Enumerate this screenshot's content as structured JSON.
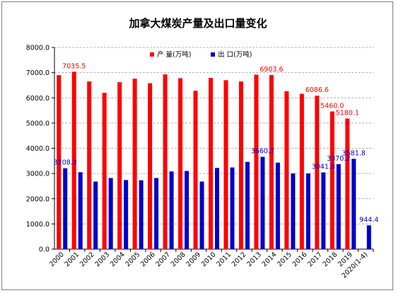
{
  "chart_data": {
    "type": "bar",
    "title": "加拿大煤炭产量及出口量变化",
    "xlabel": "",
    "ylabel": "",
    "ylim": [
      0,
      8000
    ],
    "yticks": [
      "0.0",
      "1000.0",
      "2000.0",
      "3000.0",
      "4000.0",
      "5000.0",
      "6000.0",
      "7000.0",
      "8000.0"
    ],
    "grid": true,
    "legend_position": "top-center",
    "categories": [
      "2000",
      "2001",
      "2002",
      "2003",
      "2004",
      "2005",
      "2006",
      "2007",
      "2008",
      "2009",
      "2010",
      "2011",
      "2012",
      "2013",
      "2014",
      "2015",
      "2016",
      "2017",
      "2018",
      "2019",
      "2020(1-4)"
    ],
    "series": [
      {
        "name": "产 量(万吨)",
        "color": "#ff0000",
        "values": [
          6900,
          7035.5,
          6650,
          6200,
          6620,
          6760,
          6580,
          6930,
          6780,
          6280,
          6790,
          6700,
          6650,
          6920,
          6903.6,
          6260,
          6160,
          6086.6,
          5460.0,
          5180.1,
          null
        ],
        "labels": [
          null,
          "7035.5",
          null,
          null,
          null,
          null,
          null,
          null,
          null,
          null,
          null,
          null,
          null,
          null,
          "6903.6",
          null,
          null,
          "6086.6",
          "5460.0",
          "5180.1",
          null
        ]
      },
      {
        "name": "出 口(万吨)",
        "color": "#0000cc",
        "values": [
          3208.3,
          3050,
          2680,
          2820,
          2740,
          2730,
          2820,
          3080,
          3100,
          2680,
          3220,
          3240,
          3460,
          3660.7,
          3430,
          3000,
          3000,
          3041.8,
          3370.2,
          3581.8,
          944.4
        ],
        "labels": [
          "3208.3",
          null,
          null,
          null,
          null,
          null,
          null,
          null,
          null,
          null,
          null,
          null,
          null,
          "3660.7",
          null,
          null,
          null,
          "3041.8",
          "3370.2",
          "3581.8",
          "944.4"
        ]
      }
    ]
  }
}
